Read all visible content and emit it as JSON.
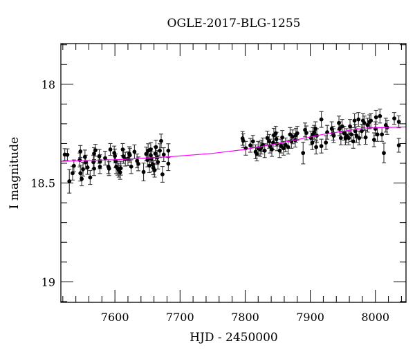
{
  "chart_data": {
    "type": "scatter",
    "title": "OGLE-2017-BLG-1255",
    "xlabel": "HJD - 2450000",
    "ylabel": "I magnitude",
    "xlim": [
      7517,
      8047
    ],
    "ylim": [
      19.104,
      17.794
    ],
    "y_inverted": true,
    "grid": false,
    "x_major_ticks": [
      7600,
      7700,
      7800,
      7900,
      8000
    ],
    "x_tick_labels": [
      "7600",
      "7700",
      "7800",
      "7900",
      "8000"
    ],
    "x_minor_step": 20,
    "y_major_ticks": [
      18,
      18.5,
      19
    ],
    "y_tick_labels": [
      "18",
      "18.5",
      "19"
    ],
    "y_minor_step": 0.1,
    "colors": {
      "points": "#000000",
      "errorbars": "#333333",
      "model": "#ff00ff"
    },
    "series": [
      {
        "name": "OGLE photometry",
        "columns": [
          "hjd",
          "mag",
          "err"
        ],
        "points": [
          [
            7523,
            18.356,
            0.03
          ],
          [
            7527,
            18.357,
            0.03
          ],
          [
            7530,
            18.491,
            0.06
          ],
          [
            7535,
            18.45,
            0.035
          ],
          [
            7537,
            18.413,
            0.03
          ],
          [
            7546,
            18.383,
            0.035
          ],
          [
            7547,
            18.34,
            0.03
          ],
          [
            7547,
            18.45,
            0.04
          ],
          [
            7549,
            18.479,
            0.035
          ],
          [
            7551,
            18.43,
            0.035
          ],
          [
            7554,
            18.368,
            0.035
          ],
          [
            7555,
            18.394,
            0.035
          ],
          [
            7558,
            18.421,
            0.035
          ],
          [
            7562,
            18.472,
            0.035
          ],
          [
            7567,
            18.394,
            0.035
          ],
          [
            7568,
            18.351,
            0.03
          ],
          [
            7568,
            18.427,
            0.035
          ],
          [
            7570,
            18.334,
            0.03
          ],
          [
            7576,
            18.365,
            0.035
          ],
          [
            7577,
            18.417,
            0.035
          ],
          [
            7577,
            18.392,
            0.035
          ],
          [
            7585,
            18.374,
            0.035
          ],
          [
            7590,
            18.417,
            0.035
          ],
          [
            7591,
            18.427,
            0.035
          ],
          [
            7593,
            18.33,
            0.03
          ],
          [
            7599,
            18.348,
            0.035
          ],
          [
            7600,
            18.363,
            0.035
          ],
          [
            7601,
            18.388,
            0.035
          ],
          [
            7602,
            18.417,
            0.035
          ],
          [
            7604,
            18.425,
            0.035
          ],
          [
            7606,
            18.435,
            0.035
          ],
          [
            7608,
            18.446,
            0.035
          ],
          [
            7609,
            18.425,
            0.035
          ],
          [
            7612,
            18.33,
            0.03
          ],
          [
            7613,
            18.365,
            0.035
          ],
          [
            7616,
            18.379,
            0.035
          ],
          [
            7620,
            18.377,
            0.035
          ],
          [
            7622,
            18.351,
            0.035
          ],
          [
            7623,
            18.359,
            0.035
          ],
          [
            7625,
            18.417,
            0.035
          ],
          [
            7630,
            18.342,
            0.035
          ],
          [
            7634,
            18.388,
            0.035
          ],
          [
            7636,
            18.403,
            0.035
          ],
          [
            7644,
            18.444,
            0.045
          ],
          [
            7648,
            18.353,
            0.035
          ],
          [
            7650,
            18.383,
            0.035
          ],
          [
            7651,
            18.336,
            0.035
          ],
          [
            7653,
            18.412,
            0.035
          ],
          [
            7655,
            18.359,
            0.035
          ],
          [
            7655,
            18.33,
            0.035
          ],
          [
            7656,
            18.377,
            0.035
          ],
          [
            7658,
            18.405,
            0.035
          ],
          [
            7659,
            18.423,
            0.035
          ],
          [
            7661,
            18.435,
            0.035
          ],
          [
            7662,
            18.351,
            0.035
          ],
          [
            7663,
            18.318,
            0.035
          ],
          [
            7665,
            18.371,
            0.035
          ],
          [
            7666,
            18.394,
            0.035
          ],
          [
            7669,
            18.336,
            0.035
          ],
          [
            7671,
            18.287,
            0.035
          ],
          [
            7673,
            18.456,
            0.04
          ],
          [
            7675,
            18.356,
            0.035
          ],
          [
            7682,
            18.336,
            0.035
          ],
          [
            7682,
            18.402,
            0.035
          ],
          [
            7796,
            18.274,
            0.035
          ],
          [
            7797,
            18.286,
            0.035
          ],
          [
            7801,
            18.324,
            0.035
          ],
          [
            7808,
            18.309,
            0.035
          ],
          [
            7812,
            18.289,
            0.03
          ],
          [
            7816,
            18.342,
            0.035
          ],
          [
            7818,
            18.353,
            0.035
          ],
          [
            7820,
            18.324,
            0.035
          ],
          [
            7823,
            18.33,
            0.035
          ],
          [
            7825,
            18.318,
            0.035
          ],
          [
            7827,
            18.307,
            0.035
          ],
          [
            7830,
            18.336,
            0.035
          ],
          [
            7834,
            18.272,
            0.035
          ],
          [
            7837,
            18.289,
            0.035
          ],
          [
            7838,
            18.313,
            0.035
          ],
          [
            7841,
            18.33,
            0.035
          ],
          [
            7843,
            18.296,
            0.035
          ],
          [
            7844,
            18.258,
            0.035
          ],
          [
            7847,
            18.248,
            0.035
          ],
          [
            7848,
            18.278,
            0.035
          ],
          [
            7849,
            18.301,
            0.035
          ],
          [
            7853,
            18.336,
            0.035
          ],
          [
            7855,
            18.313,
            0.035
          ],
          [
            7857,
            18.269,
            0.035
          ],
          [
            7859,
            18.324,
            0.035
          ],
          [
            7862,
            18.307,
            0.035
          ],
          [
            7866,
            18.318,
            0.035
          ],
          [
            7869,
            18.254,
            0.035
          ],
          [
            7871,
            18.289,
            0.035
          ],
          [
            7873,
            18.266,
            0.035
          ],
          [
            7877,
            18.283,
            0.035
          ],
          [
            7878,
            18.258,
            0.035
          ],
          [
            7880,
            18.248,
            0.035
          ],
          [
            7889,
            18.348,
            0.055
          ],
          [
            7892,
            18.231,
            0.035
          ],
          [
            7894,
            18.246,
            0.035
          ],
          [
            7901,
            18.272,
            0.035
          ],
          [
            7903,
            18.296,
            0.035
          ],
          [
            7904,
            18.254,
            0.035
          ],
          [
            7906,
            18.243,
            0.035
          ],
          [
            7908,
            18.225,
            0.035
          ],
          [
            7909,
            18.318,
            0.035
          ],
          [
            7910,
            18.26,
            0.035
          ],
          [
            7917,
            18.178,
            0.04
          ],
          [
            7917,
            18.313,
            0.035
          ],
          [
            7924,
            18.295,
            0.035
          ],
          [
            7926,
            18.243,
            0.035
          ],
          [
            7933,
            18.225,
            0.035
          ],
          [
            7935,
            18.248,
            0.035
          ],
          [
            7936,
            18.26,
            0.035
          ],
          [
            7944,
            18.196,
            0.035
          ],
          [
            7945,
            18.225,
            0.035
          ],
          [
            7947,
            18.272,
            0.035
          ],
          [
            7949,
            18.213,
            0.035
          ],
          [
            7952,
            18.248,
            0.035
          ],
          [
            7954,
            18.272,
            0.035
          ],
          [
            7956,
            18.26,
            0.035
          ],
          [
            7959,
            18.272,
            0.035
          ],
          [
            7961,
            18.213,
            0.035
          ],
          [
            7963,
            18.254,
            0.035
          ],
          [
            7966,
            18.289,
            0.035
          ],
          [
            7968,
            18.184,
            0.035
          ],
          [
            7969,
            18.237,
            0.035
          ],
          [
            7971,
            18.26,
            0.035
          ],
          [
            7974,
            18.178,
            0.035
          ],
          [
            7975,
            18.272,
            0.035
          ],
          [
            7979,
            18.237,
            0.035
          ],
          [
            7981,
            18.184,
            0.035
          ],
          [
            7983,
            18.196,
            0.035
          ],
          [
            7985,
            18.269,
            0.035
          ],
          [
            7988,
            18.207,
            0.035
          ],
          [
            7991,
            18.19,
            0.035
          ],
          [
            7993,
            18.184,
            0.035
          ],
          [
            7998,
            18.281,
            0.035
          ],
          [
            8000,
            18.225,
            0.035
          ],
          [
            8001,
            18.167,
            0.035
          ],
          [
            8003,
            18.254,
            0.035
          ],
          [
            8007,
            18.161,
            0.035
          ],
          [
            8010,
            18.254,
            0.035
          ],
          [
            8013,
            18.348,
            0.05
          ],
          [
            8016,
            18.207,
            0.035
          ],
          [
            8018,
            18.219,
            0.035
          ],
          [
            8029,
            18.173,
            0.03
          ],
          [
            8036,
            18.19,
            0.03
          ],
          [
            8036,
            18.309,
            0.035
          ]
        ]
      },
      {
        "name": "model",
        "type": "line",
        "x": [
          7517,
          7600,
          7684,
          7750,
          7800,
          7850,
          7922,
          7983,
          8047
        ],
        "y": [
          18.39,
          18.382,
          18.367,
          18.35,
          18.33,
          18.3,
          18.252,
          18.222,
          18.216
        ]
      }
    ]
  }
}
